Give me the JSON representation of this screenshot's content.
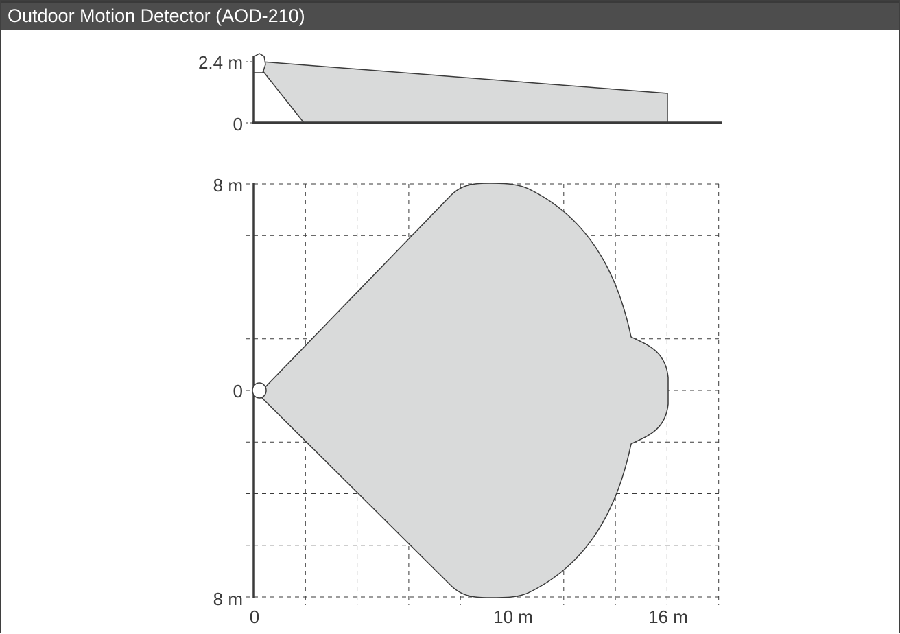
{
  "title": "Outdoor Motion Detector (AOD-210)",
  "colors": {
    "title_bar": "#4d4d4d",
    "zone_fill": "#d9dada",
    "zone_stroke": "#3a3a3a",
    "axis": "#3a3a3a",
    "grid": "#3a3a3a"
  },
  "side_view": {
    "y_labels": [
      "2.4 m",
      "0"
    ],
    "mount_height_m": 2.4,
    "far_height_m": 1.15,
    "near_ground_m": 2,
    "range_m": 16
  },
  "top_view": {
    "y_top_label": "8 m",
    "y_mid_label": "0",
    "y_bottom_label": "8 m",
    "x_labels": [
      "0",
      "10 m",
      "16 m"
    ],
    "half_width_m": 8,
    "grid_step_m": 2,
    "max_range_m": 16
  }
}
